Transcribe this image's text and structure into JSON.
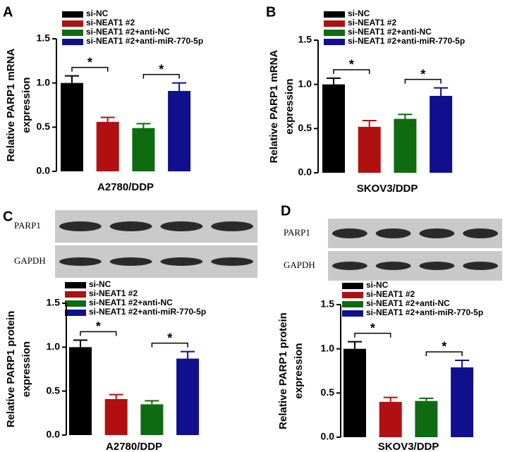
{
  "chart_data": [
    {
      "type": "bar",
      "panel": "A",
      "ylabel": [
        "Relative  PARP1 mRNA",
        "expression"
      ],
      "categories": [
        "A2780/DDP"
      ],
      "ylim": [
        0,
        1.5
      ],
      "yticks": [
        {
          "value": 0,
          "label": "0.0"
        },
        0.5,
        {
          "value": 1,
          "label": "1.0"
        },
        1.5
      ],
      "series": [
        {
          "name": "si-NC",
          "color": "#000000",
          "values": [
            1.0
          ],
          "errors": [
            0.08
          ]
        },
        {
          "name": "si-NEAT1 #2",
          "color": "#b01010",
          "values": [
            0.56
          ],
          "errors": [
            0.05
          ]
        },
        {
          "name": "si-NEAT1 #2+anti-NC",
          "color": "#0e6b10",
          "values": [
            0.49
          ],
          "errors": [
            0.05
          ]
        },
        {
          "name": "si-NEAT1 #2+anti-miR-770-5p",
          "color": "#10108e",
          "values": [
            0.91
          ],
          "errors": [
            0.09
          ]
        }
      ],
      "annotations": [
        {
          "text": "*",
          "series": [
            0,
            1
          ]
        },
        {
          "text": "*",
          "series": [
            2,
            3
          ]
        }
      ]
    },
    {
      "type": "bar",
      "panel": "B",
      "ylabel": [
        "Relative  PARP1 mRNA",
        "expression"
      ],
      "categories": [
        "SKOV3/DDP"
      ],
      "ylim": [
        0,
        1.5
      ],
      "yticks": [
        {
          "value": 0,
          "label": "0.0"
        },
        0.5,
        {
          "value": 1,
          "label": "1.0"
        },
        1.5
      ],
      "series": [
        {
          "name": "si-NC",
          "color": "#000000",
          "values": [
            1.0
          ],
          "errors": [
            0.07
          ]
        },
        {
          "name": "si-NEAT1 #2",
          "color": "#b01010",
          "values": [
            0.52
          ],
          "errors": [
            0.07
          ]
        },
        {
          "name": "si-NEAT1 #2+anti-NC",
          "color": "#0e6b10",
          "values": [
            0.61
          ],
          "errors": [
            0.05
          ]
        },
        {
          "name": "si-NEAT1 #2+anti-miR-770-5p",
          "color": "#10108e",
          "values": [
            0.87
          ],
          "errors": [
            0.09
          ]
        }
      ],
      "annotations": [
        {
          "text": "*",
          "series": [
            0,
            1
          ]
        },
        {
          "text": "*",
          "series": [
            2,
            3
          ]
        }
      ]
    },
    {
      "type": "bar",
      "panel": "C",
      "blot": [
        "PARP1",
        "GAPDH"
      ],
      "ylabel": [
        "Relative PARP1 protein",
        "expression"
      ],
      "categories": [
        "A2780/DDP"
      ],
      "ylim": [
        0,
        1.5
      ],
      "yticks": [
        {
          "value": 0,
          "label": "0.0"
        },
        0.5,
        {
          "value": 1,
          "label": "1.0"
        },
        1.5
      ],
      "series": [
        {
          "name": "si-NC",
          "color": "#000000",
          "values": [
            1.0
          ],
          "errors": [
            0.08
          ]
        },
        {
          "name": "si-NEAT1 #2",
          "color": "#b01010",
          "values": [
            0.41
          ],
          "errors": [
            0.05
          ]
        },
        {
          "name": "si-NEAT1 #2+anti-NC",
          "color": "#0e6b10",
          "values": [
            0.35
          ],
          "errors": [
            0.04
          ]
        },
        {
          "name": "si-NEAT1 #2+anti-miR-770-5p",
          "color": "#10108e",
          "values": [
            0.87
          ],
          "errors": [
            0.08
          ]
        }
      ],
      "annotations": [
        {
          "text": "*",
          "series": [
            0,
            1
          ]
        },
        {
          "text": "*",
          "series": [
            2,
            3
          ]
        }
      ]
    },
    {
      "type": "bar",
      "panel": "D",
      "blot": [
        "PARP1",
        "GAPDH"
      ],
      "ylabel": [
        "Relative PARP1 protein",
        "expression"
      ],
      "categories": [
        "SKOV3/DDP"
      ],
      "ylim": [
        0,
        1.5
      ],
      "yticks": [
        {
          "value": 0,
          "label": "0.0"
        },
        0.5,
        {
          "value": 1,
          "label": "1.0"
        },
        1.5
      ],
      "series": [
        {
          "name": "si-NC",
          "color": "#000000",
          "values": [
            1.0
          ],
          "errors": [
            0.08
          ]
        },
        {
          "name": "si-NEAT1 #2",
          "color": "#b01010",
          "values": [
            0.4
          ],
          "errors": [
            0.05
          ]
        },
        {
          "name": "si-NEAT1 #2+anti-NC",
          "color": "#0e6b10",
          "values": [
            0.41
          ],
          "errors": [
            0.03
          ]
        },
        {
          "name": "si-NEAT1 #2+anti-miR-770-5p",
          "color": "#10108e",
          "values": [
            0.79
          ],
          "errors": [
            0.08
          ]
        }
      ],
      "annotations": [
        {
          "text": "*",
          "series": [
            0,
            1
          ]
        },
        {
          "text": "*",
          "series": [
            2,
            3
          ]
        }
      ]
    }
  ]
}
